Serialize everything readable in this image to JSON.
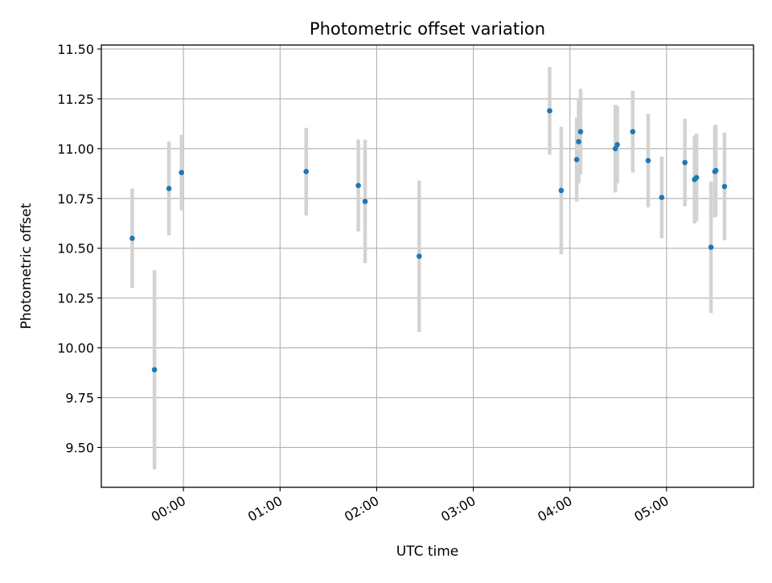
{
  "chart_data": {
    "type": "scatter",
    "title": "Photometric offset variation",
    "xlabel": "UTC time",
    "ylabel": "Photometric offset",
    "x_unit": "hours",
    "xlim": [
      -0.85,
      5.9
    ],
    "ylim": [
      9.3,
      11.52
    ],
    "xticks": [
      {
        "value": 0,
        "label": "00:00"
      },
      {
        "value": 1,
        "label": "01:00"
      },
      {
        "value": 2,
        "label": "02:00"
      },
      {
        "value": 3,
        "label": "03:00"
      },
      {
        "value": 4,
        "label": "04:00"
      },
      {
        "value": 5,
        "label": "05:00"
      }
    ],
    "yticks": [
      {
        "value": 9.5,
        "label": "9.50"
      },
      {
        "value": 9.75,
        "label": "9.75"
      },
      {
        "value": 10.0,
        "label": "10.00"
      },
      {
        "value": 10.25,
        "label": "10.25"
      },
      {
        "value": 10.5,
        "label": "10.50"
      },
      {
        "value": 10.75,
        "label": "10.75"
      },
      {
        "value": 11.0,
        "label": "11.00"
      },
      {
        "value": 11.25,
        "label": "11.25"
      },
      {
        "value": 11.5,
        "label": "11.50"
      }
    ],
    "grid": true,
    "legend": "none",
    "colors": {
      "point": "#1f77b4",
      "errorbar": "#d3d3d3",
      "grid": "#b0b0b0",
      "axes": "#000000"
    },
    "points": [
      {
        "x": -0.53,
        "y": 10.55,
        "yerr": 0.25
      },
      {
        "x": -0.3,
        "y": 9.89,
        "yerr": 0.5
      },
      {
        "x": -0.15,
        "y": 10.8,
        "yerr": 0.235
      },
      {
        "x": -0.02,
        "y": 10.88,
        "yerr": 0.19
      },
      {
        "x": 1.27,
        "y": 10.885,
        "yerr": 0.22
      },
      {
        "x": 1.81,
        "y": 10.815,
        "yerr": 0.23
      },
      {
        "x": 1.88,
        "y": 10.735,
        "yerr": 0.31
      },
      {
        "x": 2.44,
        "y": 10.46,
        "yerr": 0.38
      },
      {
        "x": 3.79,
        "y": 11.19,
        "yerr": 0.22
      },
      {
        "x": 3.91,
        "y": 10.79,
        "yerr": 0.32
      },
      {
        "x": 4.07,
        "y": 10.945,
        "yerr": 0.21
      },
      {
        "x": 4.09,
        "y": 11.035,
        "yerr": 0.21
      },
      {
        "x": 4.11,
        "y": 11.085,
        "yerr": 0.215
      },
      {
        "x": 4.47,
        "y": 11.0,
        "yerr": 0.22
      },
      {
        "x": 4.49,
        "y": 11.02,
        "yerr": 0.195
      },
      {
        "x": 4.65,
        "y": 11.085,
        "yerr": 0.205
      },
      {
        "x": 4.81,
        "y": 10.94,
        "yerr": 0.235
      },
      {
        "x": 4.95,
        "y": 10.755,
        "yerr": 0.205
      },
      {
        "x": 5.19,
        "y": 10.93,
        "yerr": 0.22
      },
      {
        "x": 5.29,
        "y": 10.845,
        "yerr": 0.22
      },
      {
        "x": 5.31,
        "y": 10.855,
        "yerr": 0.22
      },
      {
        "x": 5.46,
        "y": 10.505,
        "yerr": 0.33
      },
      {
        "x": 5.5,
        "y": 10.885,
        "yerr": 0.23
      },
      {
        "x": 5.51,
        "y": 10.89,
        "yerr": 0.23
      },
      {
        "x": 5.6,
        "y": 10.81,
        "yerr": 0.27
      }
    ]
  }
}
